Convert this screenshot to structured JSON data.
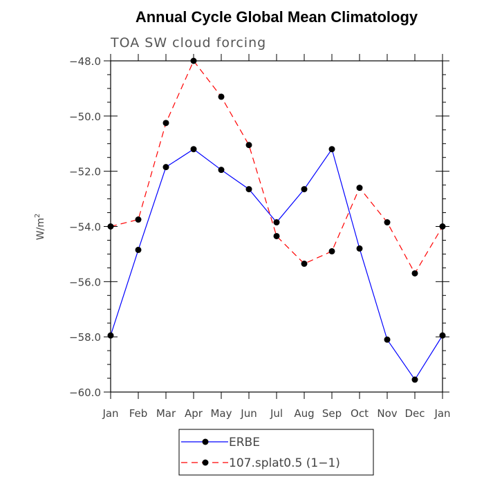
{
  "chart_data": {
    "type": "line",
    "title": "Annual Cycle Global Mean Climatology",
    "subtitle": "TOA SW cloud forcing",
    "ylabel": "W/m",
    "ylabel_sup": "2",
    "xlabel": "",
    "categories": [
      "Jan",
      "Feb",
      "Mar",
      "Apr",
      "May",
      "Jun",
      "Jul",
      "Aug",
      "Sep",
      "Oct",
      "Nov",
      "Dec",
      "Jan"
    ],
    "ylim": [
      -60.0,
      -48.0
    ],
    "yticks": [
      -60.0,
      -58.0,
      -56.0,
      -54.0,
      -52.0,
      -50.0,
      -48.0
    ],
    "ytick_labels": [
      "−60.0",
      "−58.0",
      "−56.0",
      "−54.0",
      "−52.0",
      "−50.0",
      "−48.0"
    ],
    "series": [
      {
        "name": "ERBE",
        "color": "#0000ff",
        "dash": "solid",
        "values": [
          -57.95,
          -54.85,
          -51.85,
          -51.2,
          -51.95,
          -52.65,
          -53.85,
          -52.65,
          -51.2,
          -54.8,
          -58.1,
          -59.55,
          -57.95
        ]
      },
      {
        "name": "107.splat0.5 (1−1)",
        "color": "#ff0000",
        "dash": "dashed",
        "values": [
          -54.0,
          -53.75,
          -50.25,
          -48.0,
          -49.3,
          -51.05,
          -54.35,
          -55.35,
          -54.9,
          -52.6,
          -53.85,
          -55.7,
          -54.0
        ]
      }
    ],
    "legend_position": "bottom-center"
  }
}
